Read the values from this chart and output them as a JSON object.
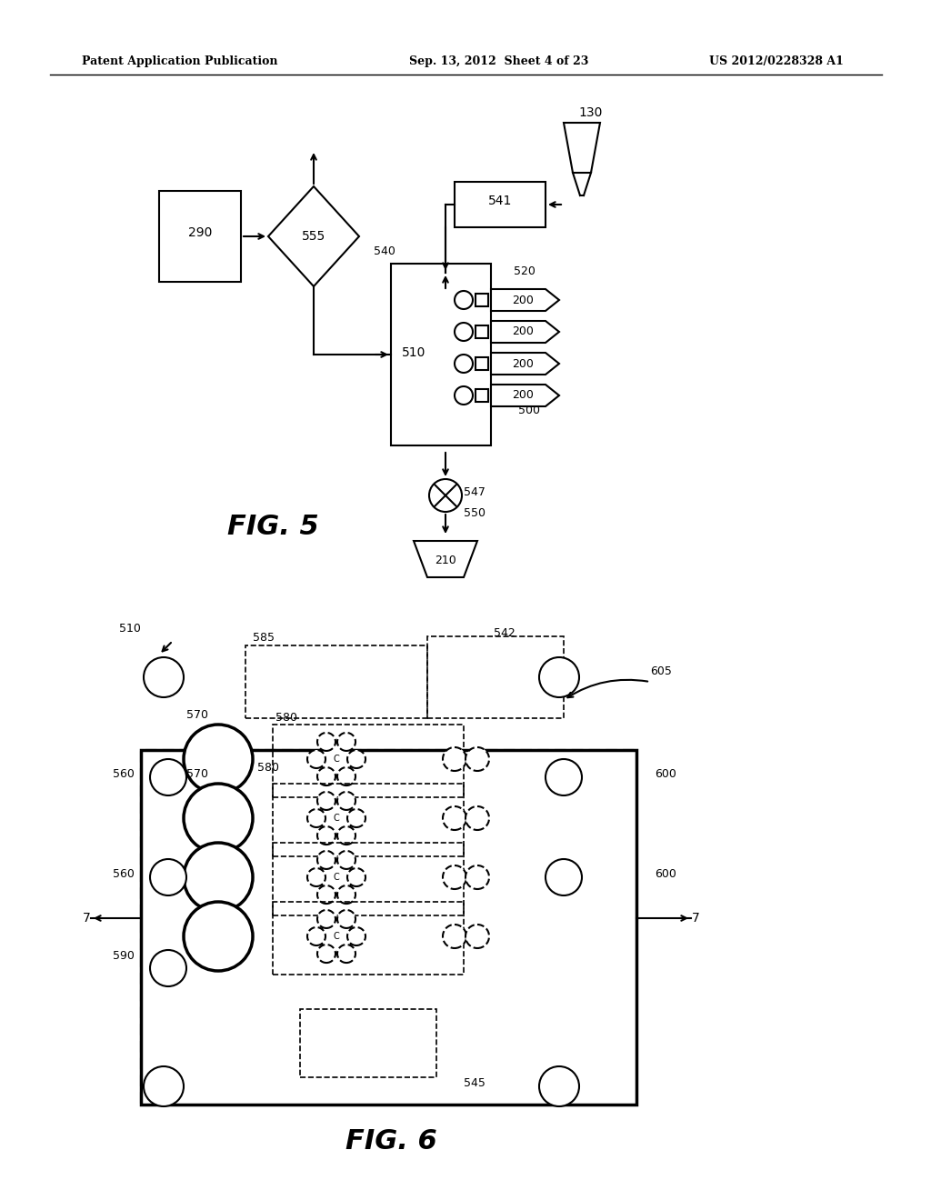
{
  "header_left": "Patent Application Publication",
  "header_center": "Sep. 13, 2012  Sheet 4 of 23",
  "header_right": "US 2012/0228328 A1",
  "fig5_label": "FIG. 5",
  "fig6_label": "FIG. 6",
  "bg_color": "#ffffff"
}
